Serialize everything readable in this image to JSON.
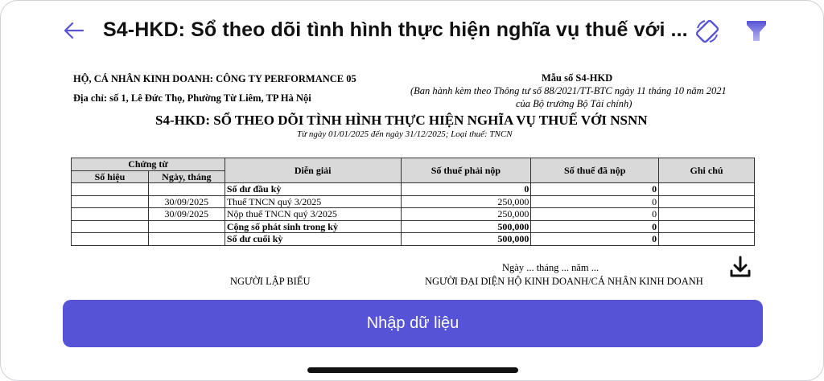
{
  "header": {
    "title": "S4-HKD: Sổ theo dõi tình hình thực hiện nghĩa vụ thuế với ...",
    "back_icon": "arrow-left-icon",
    "rotate_icon": "screen-rotate-icon",
    "filter_icon": "filter-icon",
    "accent_color": "#5653d6"
  },
  "document": {
    "business": "HỘ, CÁ NHÂN KINH DOANH: CÔNG TY PERFORMANCE 05",
    "address": "Địa chỉ: số 1, Lê Đức Thọ, Phường Từ Liêm, TP Hà Nội",
    "form_no": "Mẫu số S4-HKD",
    "form_note_1": "(Ban hành kèm theo Thông tư số 88/2021/TT-BTC ngày 11 tháng 10 năm 2021",
    "form_note_2": "của Bộ trưởng Bộ Tài chính)",
    "title": "S4-HKD: SỔ THEO DÕI TÌNH HÌNH THỰC HIỆN NGHĨA VỤ THUẾ VỚI NSNN",
    "subtitle": "Từ ngày 01/01/2025 đến ngày 31/12/2025; Loại thuế: TNCN",
    "table": {
      "group_header": "Chứng từ",
      "headers": [
        "Số hiệu",
        "Ngày, tháng",
        "Diễn giải",
        "Số thuế phải nộp",
        "Số thuế đã nộp",
        "Ghi chú"
      ],
      "rows": [
        {
          "so_hieu": "",
          "ngay": "",
          "dien_giai": "Số dư đầu kỳ",
          "phai_nop": "0",
          "da_nop": "0",
          "ghi_chu": "",
          "bold": true
        },
        {
          "so_hieu": "",
          "ngay": "30/09/2025",
          "dien_giai": "Thuế TNCN quý 3/2025",
          "phai_nop": "250,000",
          "da_nop": "0",
          "ghi_chu": "",
          "bold": false
        },
        {
          "so_hieu": "",
          "ngay": "30/09/2025",
          "dien_giai": "Nộp thuế TNCN quý 3/2025",
          "phai_nop": "250,000",
          "da_nop": "0",
          "ghi_chu": "",
          "bold": false
        },
        {
          "so_hieu": "",
          "ngay": "",
          "dien_giai": "Cộng số phát sinh trong kỳ",
          "phai_nop": "500,000",
          "da_nop": "0",
          "ghi_chu": "",
          "bold": true
        },
        {
          "so_hieu": "",
          "ngay": "",
          "dien_giai": "Số dư cuối kỳ",
          "phai_nop": "500,000",
          "da_nop": "0",
          "ghi_chu": "",
          "bold": true
        }
      ]
    },
    "date_line": "Ngày ... tháng ... năm ...",
    "preparer": "NGƯỜI LẬP BIỂU",
    "representative": "NGƯỜI ĐẠI DIỆN HỘ KINH DOANH/CÁ NHÂN KINH DOANH",
    "download_icon": "download-icon"
  },
  "actions": {
    "enter_data": "Nhập dữ liệu"
  }
}
